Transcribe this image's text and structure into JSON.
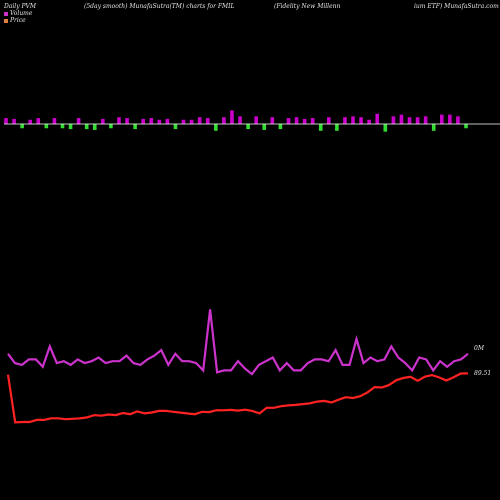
{
  "header": {
    "left": "Daily PVM",
    "center": "(5day smooth) MunafaSutra(TM) charts for FMIL",
    "right": "(Fidelity New Millenn",
    "right_tail": "ium ETF) MunafaSutra.com"
  },
  "legend": {
    "volume_label": "Volume",
    "price_label": "Price",
    "volume_color": "#cc33cc",
    "price_color": "#e08040"
  },
  "colors": {
    "volume_up": "#cc00cc",
    "volume_down": "#33dd33",
    "volume_line": "#cc33cc",
    "price_line": "#ff2222",
    "baseline": "#ffffff"
  },
  "chart_data": {
    "type": "line",
    "x_count": 58,
    "volume_bars": {
      "dir": [
        1,
        1,
        -1,
        1,
        1,
        -1,
        1,
        -1,
        -1,
        1,
        -1,
        -1,
        1,
        -1,
        1,
        1,
        -1,
        1,
        1,
        1,
        1,
        -1,
        1,
        1,
        1,
        1,
        -1,
        1,
        1,
        1,
        -1,
        1,
        -1,
        1,
        -1,
        1,
        1,
        1,
        1,
        -1,
        1,
        -1,
        1,
        1,
        1,
        1,
        1,
        -1,
        1,
        1,
        1,
        1,
        1,
        -1,
        1,
        1,
        1,
        -1
      ],
      "height": [
        7,
        6,
        5,
        5,
        7,
        5,
        7,
        5,
        6,
        7,
        6,
        7,
        6,
        5,
        8,
        7,
        6,
        6,
        7,
        5,
        6,
        6,
        5,
        5,
        8,
        7,
        8,
        8,
        16,
        9,
        6,
        9,
        7,
        8,
        6,
        7,
        8,
        6,
        7,
        8,
        8,
        8,
        8,
        9,
        8,
        5,
        12,
        9,
        9,
        11,
        8,
        8,
        9,
        8,
        11,
        11,
        9,
        5
      ]
    },
    "series": [
      {
        "name": "Volume",
        "right_label": "0M",
        "values": [
          12,
          7,
          6,
          9,
          9,
          5,
          16,
          7,
          8,
          6,
          9,
          7,
          8,
          10,
          7,
          8,
          8,
          11,
          7,
          6,
          9,
          11,
          14,
          6,
          12,
          8,
          8,
          7,
          3,
          36,
          2,
          3,
          3,
          8,
          4,
          1,
          6,
          8,
          10,
          3,
          7,
          3,
          3,
          7,
          9,
          9,
          8,
          14,
          6,
          6,
          20,
          7,
          10,
          8,
          9,
          16,
          10,
          7,
          3,
          10,
          9,
          3,
          8,
          5,
          8,
          9,
          12
        ]
      },
      {
        "name": "Price",
        "right_label": "89.51",
        "values": [
          89.41,
          85.83,
          85.85,
          85.85,
          86.01,
          86.01,
          86.13,
          86.13,
          86.06,
          86.09,
          86.12,
          86.2,
          86.37,
          86.33,
          86.42,
          86.37,
          86.53,
          86.44,
          86.65,
          86.5,
          86.57,
          86.69,
          86.69,
          86.62,
          86.56,
          86.49,
          86.44,
          86.62,
          86.6,
          86.74,
          86.73,
          86.76,
          86.71,
          86.78,
          86.68,
          86.5,
          86.93,
          86.92,
          87.04,
          87.1,
          87.14,
          87.2,
          87.26,
          87.39,
          87.44,
          87.32,
          87.53,
          87.72,
          87.66,
          87.79,
          88.07,
          88.48,
          88.45,
          88.63,
          88.99,
          89.16,
          89.25,
          88.95,
          89.26,
          89.38,
          89.2,
          88.97,
          89.22,
          89.5,
          89.51
        ]
      }
    ]
  }
}
